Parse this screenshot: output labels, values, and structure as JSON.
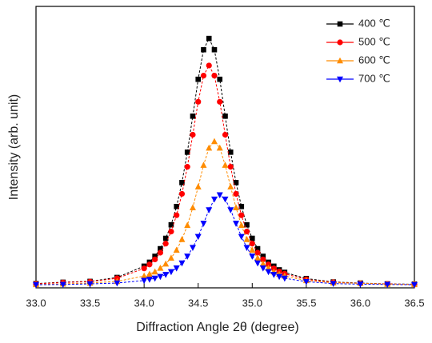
{
  "chart_data": {
    "type": "line",
    "x_label": "Diffraction Angle 2θ (degree)",
    "y_label": "Intensity (arb. unit)",
    "xlim": [
      33,
      36.5
    ],
    "ylim": [
      0,
      100
    ],
    "xticks": [
      {
        "value": 33,
        "label": "33.0"
      },
      33.5,
      {
        "value": 34,
        "label": "34.0"
      },
      34.5,
      {
        "value": 35,
        "label": "35.0"
      },
      35.5,
      {
        "value": 36,
        "label": "36.0"
      },
      36.5
    ],
    "legend": "upper right",
    "x": [
      33.0,
      33.25,
      33.5,
      33.75,
      34.0,
      34.05,
      34.1,
      34.15,
      34.2,
      34.25,
      34.3,
      34.35,
      34.4,
      34.45,
      34.5,
      34.55,
      34.6,
      34.65,
      34.7,
      34.75,
      34.8,
      34.85,
      34.9,
      34.95,
      35.0,
      35.05,
      35.1,
      35.15,
      35.2,
      35.25,
      35.3,
      35.5,
      35.75,
      36.0,
      36.25,
      36.5
    ],
    "series": [
      {
        "name": "400 ℃",
        "color": "#000000",
        "marker": "square",
        "values": [
          1.5,
          2.0,
          2.3,
          3.7,
          7.7,
          9.1,
          11.2,
          13.9,
          17.6,
          22.4,
          28.9,
          37.4,
          48.2,
          61.0,
          74.1,
          84.6,
          88.6,
          84.6,
          74.1,
          61.0,
          48.2,
          37.4,
          28.9,
          22.4,
          17.6,
          13.9,
          11.2,
          9.1,
          7.7,
          6.4,
          5.5,
          3.3,
          2.1,
          1.7,
          1.4,
          1.3
        ]
      },
      {
        "name": "500 ℃",
        "color": "#ff0000",
        "marker": "circle",
        "values": [
          1.4,
          1.9,
          2.2,
          3.4,
          6.9,
          8.3,
          10.1,
          12.5,
          15.7,
          20.0,
          25.8,
          33.4,
          43.0,
          54.4,
          66.1,
          75.4,
          79.0,
          75.4,
          66.1,
          54.4,
          43.0,
          33.4,
          25.8,
          20.0,
          15.7,
          12.5,
          10.1,
          8.3,
          6.9,
          5.8,
          5.0,
          3.0,
          2.0,
          1.6,
          1.4,
          1.2
        ]
      },
      {
        "name": "600 ℃",
        "color": "#ff8c00",
        "marker": "triangle-up",
        "values": [
          1.2,
          1.4,
          1.7,
          2.3,
          4.2,
          4.9,
          5.7,
          7.0,
          8.5,
          10.6,
          13.4,
          17.2,
          22.2,
          28.5,
          35.9,
          43.6,
          49.7,
          52.0,
          49.7,
          43.6,
          35.9,
          28.5,
          22.2,
          17.2,
          13.4,
          10.6,
          8.5,
          7.0,
          5.7,
          4.9,
          4.2,
          2.6,
          1.8,
          1.6,
          1.3,
          1.2
        ]
      },
      {
        "name": "700 ℃",
        "color": "#0000ff",
        "marker": "triangle-down",
        "values": [
          1.1,
          1.2,
          1.4,
          1.7,
          2.6,
          3.0,
          3.4,
          4.0,
          4.7,
          5.7,
          7.0,
          8.8,
          11.2,
          14.3,
          18.2,
          22.9,
          27.7,
          31.5,
          33.0,
          31.5,
          27.7,
          22.9,
          18.2,
          14.3,
          11.2,
          8.8,
          7.0,
          5.7,
          4.7,
          4.0,
          3.4,
          2.2,
          1.5,
          1.3,
          1.2,
          1.1
        ]
      }
    ]
  }
}
